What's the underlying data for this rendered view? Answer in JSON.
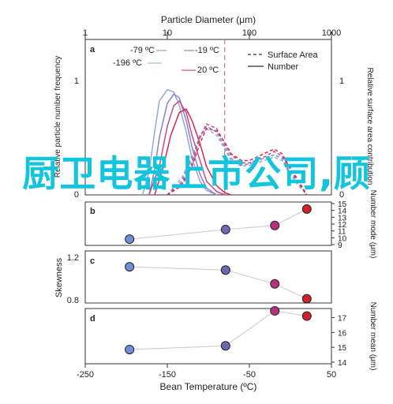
{
  "overlay_text": "厨卫电器上市公司,顾",
  "overlay_color": "#12c4dc",
  "chart_data": [
    {
      "panel": "a",
      "type": "line",
      "top_axis": {
        "label": "Particle Diameter (μm)",
        "scale": "log",
        "range": [
          1,
          1000
        ],
        "ticks": [
          "1",
          "10",
          "100",
          "1000"
        ]
      },
      "left_axis": {
        "label": "Relative particle number frequency",
        "ticks": [
          "0",
          "1"
        ]
      },
      "right_axis": {
        "label": "Relative surface area contribution",
        "ticks": [
          "0",
          "1"
        ]
      },
      "legend": [
        {
          "name": "Surface Area",
          "style": "dashed"
        },
        {
          "name": "Number",
          "style": "solid"
        }
      ],
      "temperature_labels": [
        "-79 ºC",
        "-19 ºC",
        "-196 ºC",
        "20 ºC"
      ],
      "reference_line_x": 50,
      "series": [
        {
          "temperature": "-196 ºC",
          "color": "#8fa8de",
          "measure": "Number",
          "x": [
            5,
            6,
            7,
            8,
            10,
            12,
            14,
            17,
            20,
            25,
            30,
            40
          ],
          "y": [
            0,
            0.2,
            0.55,
            0.82,
            0.92,
            0.9,
            0.78,
            0.55,
            0.32,
            0.12,
            0.04,
            0
          ]
        },
        {
          "temperature": "-79 ºC",
          "color": "#8a7fc8",
          "measure": "Number",
          "x": [
            6,
            7,
            8,
            10,
            12,
            14,
            17,
            20,
            25,
            30,
            40
          ],
          "y": [
            0,
            0.22,
            0.5,
            0.8,
            0.88,
            0.85,
            0.65,
            0.42,
            0.18,
            0.06,
            0
          ]
        },
        {
          "temperature": "-19 ºC",
          "color": "#c04a8a",
          "measure": "Number",
          "x": [
            6,
            8,
            10,
            12,
            14,
            17,
            20,
            25,
            30,
            40,
            50
          ],
          "y": [
            0,
            0.25,
            0.6,
            0.78,
            0.82,
            0.72,
            0.52,
            0.3,
            0.12,
            0.03,
            0
          ]
        },
        {
          "temperature": "20 ºC",
          "color": "#d8284a",
          "measure": "Number",
          "x": [
            7,
            9,
            11,
            14,
            17,
            20,
            25,
            30,
            40,
            50,
            60
          ],
          "y": [
            0,
            0.25,
            0.52,
            0.72,
            0.75,
            0.65,
            0.45,
            0.25,
            0.08,
            0.02,
            0
          ]
        },
        {
          "temperature": "-196 ºC",
          "color": "#8fa8de",
          "measure": "Surface Area",
          "x": [
            10,
            15,
            20,
            25,
            30,
            40,
            50,
            60,
            80,
            100,
            150,
            200,
            250,
            300,
            400,
            500
          ],
          "y": [
            0,
            0.15,
            0.35,
            0.5,
            0.58,
            0.52,
            0.4,
            0.3,
            0.25,
            0.26,
            0.3,
            0.33,
            0.3,
            0.2,
            0.08,
            0
          ]
        },
        {
          "temperature": "-79 ºC",
          "color": "#8a7fc8",
          "measure": "Surface Area",
          "x": [
            10,
            15,
            20,
            25,
            30,
            40,
            50,
            60,
            80,
            100,
            150,
            200,
            250,
            300,
            400,
            500
          ],
          "y": [
            0,
            0.12,
            0.32,
            0.52,
            0.6,
            0.55,
            0.42,
            0.32,
            0.26,
            0.27,
            0.32,
            0.35,
            0.32,
            0.22,
            0.1,
            0
          ]
        },
        {
          "temperature": "-19 ºC",
          "color": "#c04a8a",
          "measure": "Surface Area",
          "x": [
            10,
            15,
            20,
            25,
            30,
            40,
            50,
            60,
            80,
            100,
            150,
            200,
            250,
            300,
            400,
            500
          ],
          "y": [
            0,
            0.1,
            0.28,
            0.5,
            0.62,
            0.58,
            0.45,
            0.35,
            0.28,
            0.28,
            0.33,
            0.38,
            0.34,
            0.25,
            0.1,
            0
          ]
        },
        {
          "temperature": "20 ºC",
          "color": "#d8284a",
          "measure": "Surface Area",
          "x": [
            10,
            15,
            20,
            25,
            30,
            40,
            50,
            60,
            80,
            100,
            150,
            200,
            250,
            300,
            400,
            500
          ],
          "y": [
            0,
            0.08,
            0.25,
            0.45,
            0.58,
            0.56,
            0.46,
            0.36,
            0.3,
            0.3,
            0.36,
            0.4,
            0.36,
            0.26,
            0.12,
            0
          ]
        }
      ]
    },
    {
      "panel": "b",
      "type": "scatter",
      "right_axis": {
        "label": "Number mode (μm)",
        "range": [
          9,
          15
        ],
        "ticks": [
          "9",
          "10",
          "11",
          "12",
          "13",
          "14",
          "15"
        ]
      },
      "x": [
        -196,
        -79,
        -19,
        20
      ],
      "y": [
        9.8,
        11.2,
        11.8,
        14.2
      ],
      "colors": [
        "#6f8fd8",
        "#6a6ab0",
        "#b8307f",
        "#d0202c"
      ]
    },
    {
      "panel": "c",
      "type": "scatter",
      "left_axis": {
        "label": "Skewness",
        "range": [
          0.8,
          1.2
        ],
        "ticks": [
          "0.8",
          "1.2"
        ]
      },
      "x": [
        -196,
        -79,
        -19,
        20
      ],
      "y": [
        1.11,
        1.08,
        0.95,
        0.81
      ],
      "colors": [
        "#6f8fd8",
        "#6a6ab0",
        "#b8307f",
        "#d0202c"
      ]
    },
    {
      "panel": "d",
      "type": "scatter",
      "x_axis": {
        "label": "Bean Temperature (ºC)",
        "range": [
          -250,
          50
        ],
        "ticks": [
          "-250",
          "-150",
          "-50",
          "50"
        ]
      },
      "right_axis": {
        "label": "Number mean (μm)",
        "range": [
          14,
          17.5
        ],
        "ticks": [
          "14",
          "15",
          "16",
          "17"
        ]
      },
      "x": [
        -196,
        -79,
        -19,
        20
      ],
      "y": [
        14.85,
        15.1,
        17.45,
        17.1
      ],
      "colors": [
        "#6f8fd8",
        "#6a6ab0",
        "#b8307f",
        "#d0202c"
      ]
    }
  ]
}
